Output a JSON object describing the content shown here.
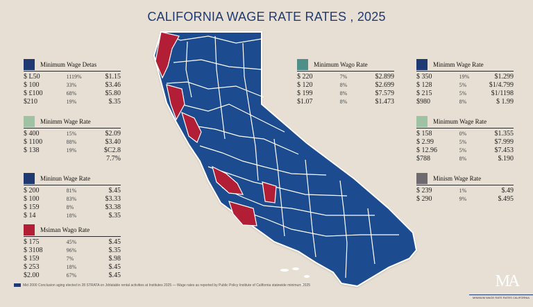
{
  "title": "CALIFORNIA WAGE RATE RATES , 2025",
  "colors": {
    "map_blue": "#1f4c8f",
    "map_red": "#b21e35",
    "background": "#e7dfd3",
    "swatch_blue": "#1f3a73",
    "swatch_teal": "#4f8f8a",
    "swatch_green": "#9fc2a5",
    "swatch_red": "#b21e35",
    "swatch_gray": "#6f6a6d"
  },
  "panels": {
    "p1": {
      "label": "Minimum Wage Detas",
      "swatch": "swatch_blue",
      "rows": [
        [
          "$  L50",
          "1119%",
          "$1.15"
        ],
        [
          "$  100",
          "33%",
          "$3.46"
        ],
        [
          "$ £100",
          "68%",
          "$5.80"
        ],
        [
          "$210",
          "19%",
          "$.35"
        ]
      ]
    },
    "p2": {
      "label": "Minimm Wage Rate",
      "swatch": "swatch_green",
      "rows": [
        [
          "$  400",
          "15%",
          "$2.09"
        ],
        [
          "$ 1100",
          "88%",
          "$3.40"
        ],
        [
          "$ 138",
          "19%",
          "$C2.8"
        ],
        [
          "",
          "",
          "7.7%"
        ]
      ]
    },
    "p3": {
      "label": "Mininun Wage Rate",
      "swatch": "swatch_blue",
      "rows": [
        [
          "$  200",
          "81%",
          "$.45"
        ],
        [
          "$  100",
          "83%",
          "$3.33"
        ],
        [
          "$  159",
          "8%",
          "$3.38"
        ],
        [
          "$  14",
          "18%",
          "$.35"
        ]
      ]
    },
    "p4": {
      "label": "Msiman Wago Rate",
      "swatch": "swatch_red",
      "rows": [
        [
          "$  175",
          "45%",
          "$.45"
        ],
        [
          "$  3108",
          "96%",
          "$.35"
        ],
        [
          "$  159",
          "7%",
          "$.98"
        ],
        [
          "$  253",
          "18%",
          "$.45"
        ],
        [
          "$2.00",
          "67%",
          "$.45"
        ]
      ]
    },
    "p5": {
      "label": "Minimum Wago Rate",
      "swatch": "swatch_teal",
      "rows": [
        [
          "$  220",
          "7%",
          "$2.899"
        ],
        [
          "$  120",
          "8%",
          "$2.699"
        ],
        [
          "$  199",
          "8%",
          "$7.579"
        ],
        [
          "$1.07",
          "8%",
          "$1.473"
        ]
      ]
    },
    "p6": {
      "label": "Minimm Wage Rate",
      "swatch": "swatch_blue",
      "rows": [
        [
          "$  350",
          "19%",
          "$1.299"
        ],
        [
          "$  128",
          "5%",
          "$1/4.799"
        ],
        [
          "$  215",
          "5%",
          "$1/1198"
        ],
        [
          "$980",
          "8%",
          "$ 1.99"
        ]
      ]
    },
    "p7": {
      "label": "Minimum Wage Rate",
      "swatch": "swatch_green",
      "rows": [
        [
          "$  158",
          "0%",
          "$1.355"
        ],
        [
          "$  2.99",
          "5%",
          "$7.999"
        ],
        [
          "$  12.96",
          "5%",
          "$7.453"
        ],
        [
          "$788",
          "8%",
          "$.190"
        ]
      ]
    },
    "p8": {
      "label": "Minism Wage Rate",
      "swatch": "swatch_gray",
      "rows": [
        [
          "$  239",
          "1%",
          "$.49"
        ],
        [
          "$  290",
          "9%",
          "$.495"
        ]
      ]
    }
  },
  "footer": "Mid 2000 Conclusion aging elected in 28 STRATA on Jdrlatable rental activities at Institutes 2025 — Wage rates as reported by Public Policy Institute of California statewide minimum 2025",
  "logo": "MA",
  "logo_sub": "MINIMUM WAGE RATE RATES CALIFORNIA"
}
